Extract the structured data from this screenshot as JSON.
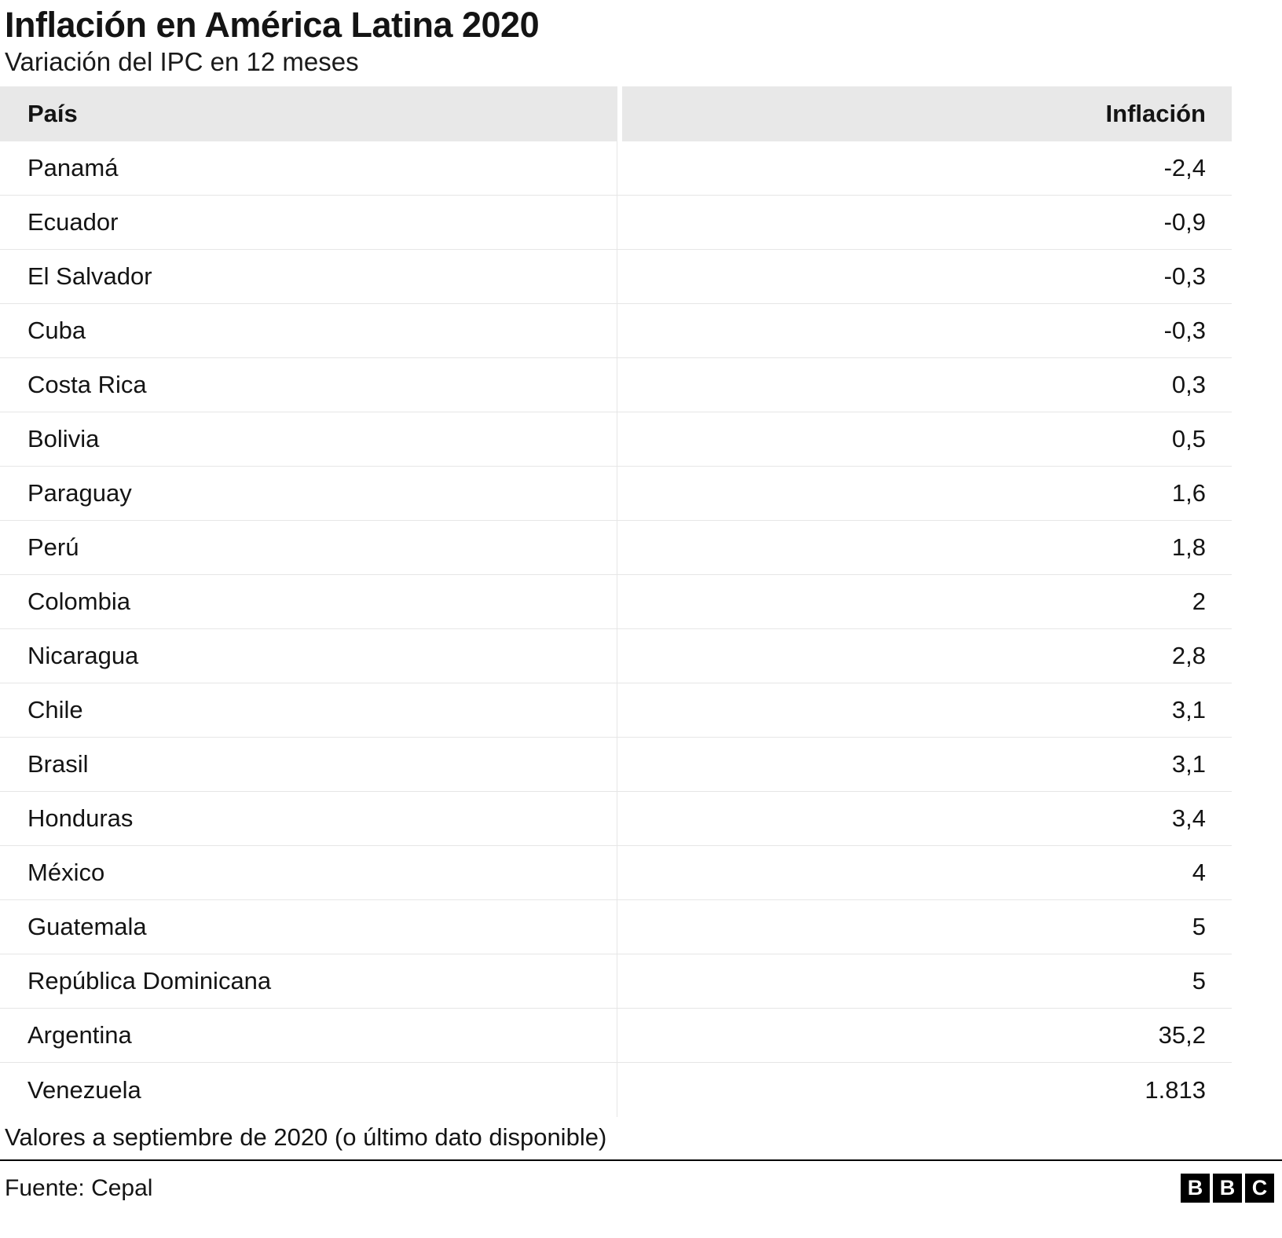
{
  "title": "Inflación en América Latina 2020",
  "subtitle": "Variación del IPC en 12 meses",
  "table": {
    "col_country": "País",
    "col_value": "Inflación",
    "rows": [
      {
        "country": "Panamá",
        "value": "-2,4"
      },
      {
        "country": "Ecuador",
        "value": "-0,9"
      },
      {
        "country": "El Salvador",
        "value": "-0,3"
      },
      {
        "country": "Cuba",
        "value": "-0,3"
      },
      {
        "country": "Costa Rica",
        "value": "0,3"
      },
      {
        "country": "Bolivia",
        "value": "0,5"
      },
      {
        "country": "Paraguay",
        "value": "1,6"
      },
      {
        "country": "Perú",
        "value": "1,8"
      },
      {
        "country": "Colombia",
        "value": "2"
      },
      {
        "country": "Nicaragua",
        "value": "2,8"
      },
      {
        "country": "Chile",
        "value": "3,1"
      },
      {
        "country": "Brasil",
        "value": "3,1"
      },
      {
        "country": "Honduras",
        "value": "3,4"
      },
      {
        "country": "México",
        "value": "4"
      },
      {
        "country": "Guatemala",
        "value": "5"
      },
      {
        "country": "República Dominicana",
        "value": "5"
      },
      {
        "country": "Argentina",
        "value": "35,2"
      },
      {
        "country": "Venezuela",
        "value": "1.813"
      }
    ]
  },
  "footnote": "Valores a septiembre de 2020 (o último dato disponible)",
  "source": "Fuente: Cepal",
  "logo_letters": [
    "B",
    "B",
    "C"
  ],
  "colors": {
    "header_bg": "#e8e8e8",
    "row_border": "#e6e6e6",
    "text": "#141414",
    "rule": "#000000"
  },
  "chart_data": {
    "type": "table",
    "title": "Inflación en América Latina 2020",
    "subtitle": "Variación del IPC en 12 meses",
    "columns": [
      "País",
      "Inflación"
    ],
    "categories": [
      "Panamá",
      "Ecuador",
      "El Salvador",
      "Cuba",
      "Costa Rica",
      "Bolivia",
      "Paraguay",
      "Perú",
      "Colombia",
      "Nicaragua",
      "Chile",
      "Brasil",
      "Honduras",
      "México",
      "Guatemala",
      "República Dominicana",
      "Argentina",
      "Venezuela"
    ],
    "values": [
      -2.4,
      -0.9,
      -0.3,
      -0.3,
      0.3,
      0.5,
      1.6,
      1.8,
      2,
      2.8,
      3.1,
      3.1,
      3.4,
      4,
      5,
      5,
      35.2,
      1813
    ],
    "value_unit": "% variación IPC 12 meses",
    "note": "Valores a septiembre de 2020 (o último dato disponible)",
    "source": "Fuente: Cepal"
  }
}
